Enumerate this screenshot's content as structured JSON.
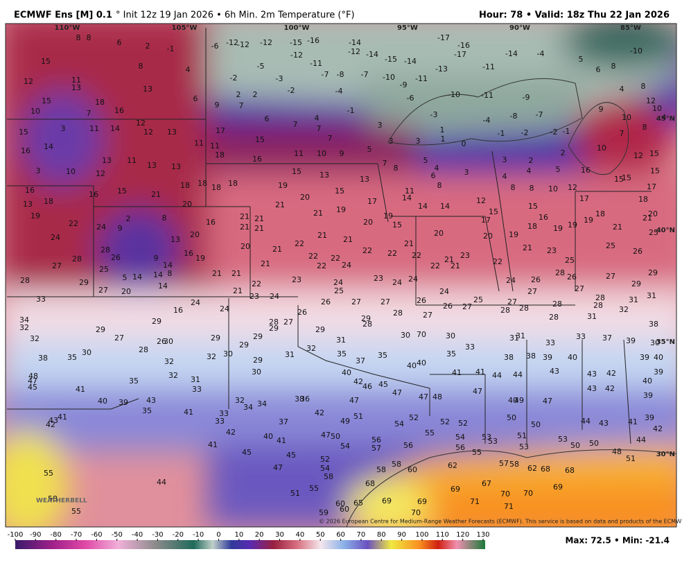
{
  "header": {
    "title": "ECMWF Ens [M] 0.1",
    "subtitle": "° Init 12z 19 Jan 2026 • 6h Min. 2m Temperature (°F)",
    "valid": "Hour: 78 • Valid: 18z Thu 22 Jan 2026"
  },
  "map": {
    "lon_labels": [
      "110°W",
      "105°W",
      "100°W",
      "95°W",
      "90°W",
      "85°W"
    ],
    "lat_labels": [
      "45°N",
      "40°N",
      "35°N",
      "30°N"
    ],
    "station_values": [
      8,
      8,
      6,
      2,
      -1,
      -6,
      -12,
      -12,
      -12,
      -15,
      -16,
      -14,
      -17,
      -16,
      -17,
      -14,
      -4,
      -10,
      15,
      8,
      4,
      -5,
      -12,
      -11,
      -12,
      -14,
      -15,
      -14,
      -13,
      -11,
      5,
      6,
      8,
      12,
      11,
      13,
      13,
      -2,
      -3,
      -7,
      -8,
      -7,
      -10,
      -11,
      -9,
      4,
      8,
      15,
      18,
      6,
      9,
      2,
      7,
      2,
      -2,
      -4,
      -6,
      -10,
      -11,
      -9,
      12,
      10,
      7,
      16,
      6,
      7,
      4,
      -1,
      -3,
      -4,
      -8,
      -7,
      9,
      10,
      10,
      4,
      15,
      3,
      11,
      14,
      12,
      12,
      13,
      17,
      7,
      3,
      1,
      -1,
      -2,
      -2,
      -1,
      7,
      8,
      14,
      16,
      11,
      11,
      15,
      7,
      3,
      3,
      1,
      0,
      10,
      18,
      13,
      11,
      13,
      13,
      16,
      11,
      10,
      9,
      5,
      7,
      8,
      5,
      4,
      6,
      3,
      3,
      2,
      2,
      12,
      15,
      3,
      10,
      12,
      15,
      13,
      13,
      4,
      4,
      5,
      16,
      15,
      15,
      15,
      16,
      16,
      15,
      21,
      18,
      18,
      18,
      18,
      19,
      15,
      11,
      8,
      8,
      8,
      10,
      12,
      17,
      13,
      18,
      20,
      21,
      20,
      17,
      14,
      14,
      14,
      12,
      15,
      17,
      18,
      19,
      21,
      19,
      19,
      15,
      18,
      20,
      22,
      24,
      2,
      8,
      9,
      16,
      21,
      21,
      20,
      15,
      17,
      16,
      18,
      19,
      19,
      19,
      21,
      21,
      25,
      13,
      20,
      21,
      21,
      21,
      21,
      20,
      20,
      19,
      24,
      28,
      26,
      20,
      22,
      22,
      22,
      21,
      21,
      23,
      25,
      16,
      19,
      9,
      28,
      21,
      22,
      22,
      22,
      21,
      23,
      22,
      21,
      22,
      25,
      26,
      27,
      25,
      14,
      21,
      22,
      24,
      28,
      26,
      27,
      29,
      28,
      29,
      5,
      14,
      14,
      8,
      21,
      21,
      22,
      23,
      24,
      23,
      24,
      24,
      24,
      26,
      27,
      29,
      33,
      27,
      20,
      14,
      21,
      23,
      24,
      25,
      24,
      25,
      27,
      24,
      24,
      16,
      26,
      27,
      27,
      26,
      26,
      27,
      27,
      28,
      28,
      28,
      28,
      28,
      31,
      31,
      34,
      32,
      29,
      28,
      27,
      26,
      29,
      29,
      28,
      28,
      27,
      28,
      31,
      32,
      38,
      29,
      29,
      32,
      27,
      26,
      30,
      28,
      29,
      29,
      29,
      31,
      30,
      70,
      30,
      31,
      31,
      33,
      33,
      37,
      39,
      30,
      32,
      31,
      35,
      35,
      37,
      35,
      33,
      38,
      38,
      39,
      40,
      39,
      40,
      38,
      35,
      30,
      32,
      30,
      29,
      32,
      40,
      40,
      30,
      48,
      47,
      45,
      40,
      42,
      46,
      45,
      47,
      41,
      41,
      44,
      44,
      43,
      43,
      42,
      39,
      40,
      32,
      35,
      31,
      33,
      41,
      47,
      48,
      47,
      43,
      42,
      39,
      40,
      39,
      43,
      32,
      34,
      34,
      38,
      36,
      47,
      40,
      49,
      47,
      35,
      41,
      33,
      42,
      41,
      43,
      42,
      51,
      52,
      49,
      54,
      52,
      52,
      50,
      50,
      44,
      43,
      41,
      39,
      42,
      33,
      42,
      37,
      40,
      41,
      47,
      50,
      55,
      54,
      53,
      53,
      51,
      53,
      50,
      50,
      44,
      41,
      45,
      56,
      57,
      54,
      56,
      56,
      55,
      53,
      48,
      51,
      45,
      52,
      54,
      47,
      58,
      58,
      60,
      62,
      57,
      58,
      62,
      68,
      68,
      55,
      58,
      68,
      44,
      67,
      69,
      69,
      70,
      70,
      69,
      69,
      71,
      71,
      51,
      55,
      60,
      60,
      65,
      59,
      70,
      55,
      58
    ],
    "credit": "© 2026 European Centre for Medium-Range Weather Forecasts (ECMWF). This service is based on data and products of the ECMWF.",
    "logo": "WEATHERBELL"
  },
  "colorbar": {
    "ticks": [
      -100,
      -90,
      -80,
      -70,
      -60,
      -50,
      -40,
      -30,
      -20,
      -10,
      0,
      10,
      20,
      30,
      40,
      50,
      60,
      70,
      80,
      90,
      100,
      110,
      120,
      130
    ]
  },
  "stats": "Max: 72.5 • Min: -21.4"
}
